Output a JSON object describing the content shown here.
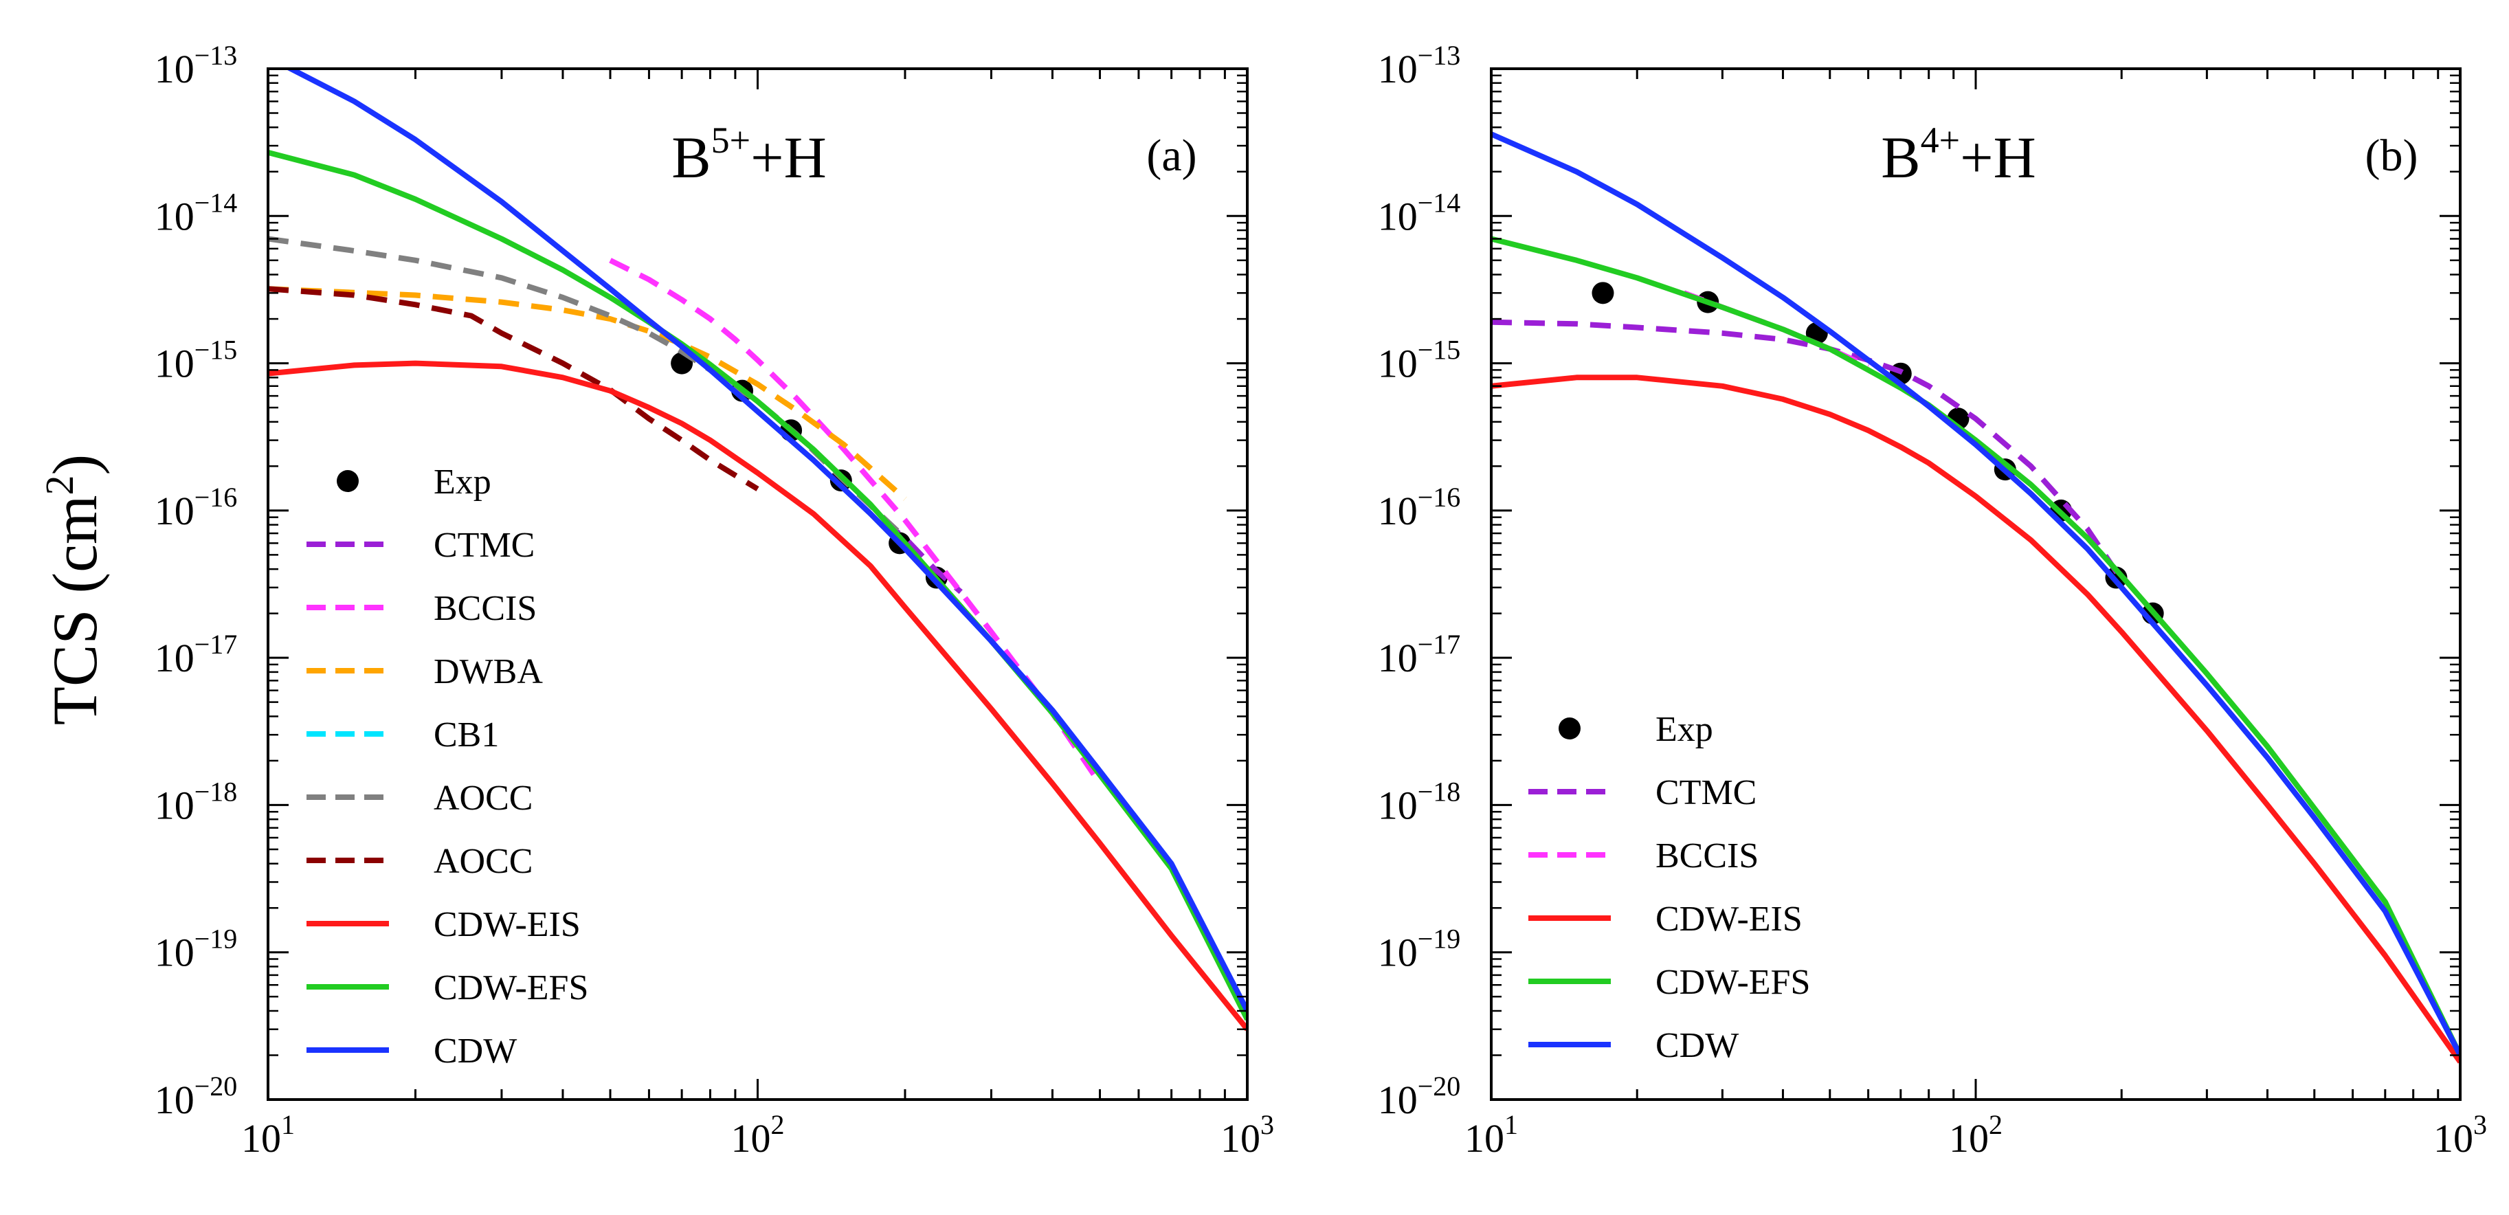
{
  "chart_data": {
    "shared": {
      "type": "line",
      "xscale": "log",
      "yscale": "log",
      "xlim": [
        10,
        1000
      ],
      "ylim": [
        1e-20,
        1e-13
      ],
      "ylabel": {
        "base": "TCS (cm",
        "sup": "2",
        "end": ")"
      },
      "xticks": [
        {
          "value": 10,
          "base": "10",
          "exp": "1"
        },
        {
          "value": 100,
          "base": "10",
          "exp": "2"
        },
        {
          "value": 1000,
          "base": "10",
          "exp": "3"
        }
      ],
      "yticks": [
        {
          "value": -13,
          "base": "10",
          "exp": "−13"
        },
        {
          "value": -14,
          "base": "10",
          "exp": "−14"
        },
        {
          "value": -15,
          "base": "10",
          "exp": "−15"
        },
        {
          "value": -16,
          "base": "10",
          "exp": "−16"
        },
        {
          "value": -17,
          "base": "10",
          "exp": "−17"
        },
        {
          "value": -18,
          "base": "10",
          "exp": "−18"
        },
        {
          "value": -19,
          "base": "10",
          "exp": "−19"
        },
        {
          "value": -20,
          "base": "10",
          "exp": "−20"
        }
      ]
    },
    "panels": [
      {
        "id": "a",
        "title": {
          "base": "B",
          "sup": "5+",
          "rest": "+H"
        },
        "tag": "(a)",
        "legend_position": "lower-left",
        "series": [
          {
            "name": "Exp",
            "kind": "scatter",
            "color": "#000000",
            "x": [
              70,
              93,
              117,
              148,
              195,
              232
            ],
            "y": [
              1e-15,
              6.5e-16,
              3.5e-16,
              1.6e-16,
              6e-17,
              3.5e-17
            ]
          },
          {
            "name": "CTMC",
            "kind": "dashed",
            "color": "#9b1fd6",
            "x": [
              180,
              200,
              230,
              260
            ],
            "y": [
              8.5e-17,
              6.5e-17,
              4e-17,
              2.8e-17
            ]
          },
          {
            "name": "BCCIS",
            "kind": "dashed",
            "color": "#ff33ff",
            "x": [
              50,
              60,
              70,
              80,
              90,
              100,
              120,
              150,
              200,
              250,
              300,
              400,
              500
            ],
            "y": [
              5e-15,
              3.7e-15,
              2.7e-15,
              2e-15,
              1.45e-15,
              1.05e-15,
              5.8e-16,
              2.6e-16,
              8.6e-17,
              3.3e-17,
              1.5e-17,
              4.2e-18,
              1.4e-18
            ]
          },
          {
            "name": "DWBA",
            "kind": "dashed",
            "color": "#ffa500",
            "x": [
              10,
              20,
              30,
              40,
              50,
              60,
              70,
              80,
              100,
              120,
              150,
              200
            ],
            "y": [
              3.2e-15,
              2.9e-15,
              2.6e-15,
              2.3e-15,
              2e-15,
              1.65e-15,
              1.35e-15,
              1.1e-15,
              7.2e-16,
              4.8e-16,
              2.8e-16,
              1.2e-16
            ]
          },
          {
            "name": "CB1",
            "kind": "dashed",
            "color": "#00e5ff",
            "x": [],
            "y": []
          },
          {
            "name": "AOCC",
            "kind": "dashed",
            "color": "#808080",
            "x": [
              10,
              15,
              20,
              30,
              40,
              50,
              60,
              70,
              80,
              100,
              120,
              150,
              200
            ],
            "y": [
              7e-15,
              5.8e-15,
              5e-15,
              3.8e-15,
              2.8e-15,
              2.1e-15,
              1.6e-15,
              1.2e-15,
              9e-16,
              5.5e-16,
              3.3e-16,
              1.6e-16,
              6.5e-17
            ]
          },
          {
            "name": "AOCC",
            "kind": "dashed",
            "color": "#8b0000",
            "x": [
              10,
              15,
              20,
              26,
              30,
              40,
              50,
              60,
              70,
              80,
              100
            ],
            "y": [
              3.2e-15,
              2.9e-15,
              2.5e-15,
              2.1e-15,
              1.6e-15,
              1e-15,
              6.6e-16,
              4.2e-16,
              3e-16,
              2.2e-16,
              1.4e-16
            ]
          },
          {
            "name": "CDW-EIS",
            "kind": "solid",
            "color": "#ff1a1a",
            "x": [
              10,
              15,
              20,
              30,
              40,
              50,
              60,
              70,
              80,
              100,
              130,
              170,
              200,
              300,
              400,
              500,
              700,
              1000
            ],
            "y": [
              8.5e-16,
              9.7e-16,
              1e-15,
              9.5e-16,
              8e-16,
              6.5e-16,
              5e-16,
              3.9e-16,
              3e-16,
              1.8e-16,
              9.5e-17,
              4.2e-17,
              2.2e-17,
              4.5e-18,
              1.4e-18,
              5.5e-19,
              1.3e-19,
              3e-20
            ]
          },
          {
            "name": "CDW-EFS",
            "kind": "solid",
            "color": "#22cc22",
            "x": [
              10,
              15,
              20,
              30,
              40,
              50,
              60,
              70,
              80,
              100,
              130,
              170,
              200,
              300,
              400,
              500,
              700,
              1000
            ],
            "y": [
              2.7e-14,
              1.9e-14,
              1.3e-14,
              7e-15,
              4.3e-15,
              2.8e-15,
              1.9e-15,
              1.35e-15,
              9.8e-16,
              5.5e-16,
              2.6e-16,
              1.1e-16,
              6e-17,
              1.3e-17,
              4.2e-18,
              1.6e-18,
              3.7e-19,
              3.5e-20
            ]
          },
          {
            "name": "CDW",
            "kind": "solid",
            "color": "#1a33ff",
            "x": [
              10,
              15,
              20,
              30,
              40,
              50,
              60,
              70,
              80,
              100,
              130,
              170,
              200,
              300,
              400,
              500,
              700,
              1000
            ],
            "y": [
              1.2e-13,
              6e-14,
              3.3e-14,
              1.25e-14,
              5.8e-15,
              3.2e-15,
              1.95e-15,
              1.3e-15,
              9e-16,
              4.7e-16,
              2.2e-16,
              9.5e-17,
              5.5e-17,
              1.3e-17,
              4.4e-18,
              1.7e-18,
              4e-19,
              4e-20
            ]
          }
        ]
      },
      {
        "id": "b",
        "title": {
          "base": "B",
          "sup": "4+",
          "rest": "+H"
        },
        "tag": "(b)",
        "legend_position": "lower-left",
        "series": [
          {
            "name": "Exp",
            "kind": "scatter",
            "color": "#000000",
            "x": [
              17,
              28,
              47,
              70,
              92,
              115,
              150,
              195,
              232
            ],
            "y": [
              3e-15,
              2.6e-15,
              1.6e-15,
              8.5e-16,
              4.2e-16,
              1.9e-16,
              1e-16,
              3.5e-17,
              2e-17
            ]
          },
          {
            "name": "CTMC",
            "kind": "dashed",
            "color": "#9b1fd6",
            "x": [
              10,
              15,
              20,
              30,
              40,
              50,
              60,
              70,
              80,
              100,
              130,
              170,
              200
            ],
            "y": [
              1.9e-15,
              1.85e-15,
              1.75e-15,
              1.6e-15,
              1.45e-15,
              1.25e-15,
              1.05e-15,
              8.8e-16,
              7e-16,
              4.2e-16,
              2e-16,
              7.5e-17,
              3.4e-17
            ]
          },
          {
            "name": "BCCIS",
            "kind": "dashed",
            "color": "#ff33ff",
            "x": [
              25,
              30,
              40,
              50,
              60
            ],
            "y": [
              3e-15,
              2.4e-15,
              1.7e-15,
              1.25e-15,
              9.5e-16
            ]
          },
          {
            "name": "CDW-EIS",
            "kind": "solid",
            "color": "#ff1a1a",
            "x": [
              10,
              15,
              20,
              30,
              40,
              50,
              60,
              70,
              80,
              100,
              130,
              170,
              200,
              300,
              400,
              500,
              700,
              1000
            ],
            "y": [
              7e-16,
              8e-16,
              8e-16,
              7e-16,
              5.7e-16,
              4.5e-16,
              3.5e-16,
              2.7e-16,
              2.1e-16,
              1.25e-16,
              6.3e-17,
              2.7e-17,
              1.5e-17,
              3.2e-18,
              1e-18,
              4e-19,
              9.5e-20,
              1.8e-20
            ]
          },
          {
            "name": "CDW-EFS",
            "kind": "solid",
            "color": "#22cc22",
            "x": [
              10,
              15,
              20,
              30,
              40,
              50,
              60,
              70,
              80,
              100,
              130,
              170,
              200,
              300,
              400,
              500,
              700,
              1000
            ],
            "y": [
              7e-15,
              5e-15,
              3.8e-15,
              2.4e-15,
              1.7e-15,
              1.25e-15,
              9e-16,
              6.8e-16,
              5.2e-16,
              3e-16,
              1.5e-16,
              6.5e-17,
              3.6e-17,
              7.8e-18,
              2.5e-18,
              9.5e-19,
              2.2e-19,
              2e-20
            ]
          },
          {
            "name": "CDW",
            "kind": "solid",
            "color": "#1a33ff",
            "x": [
              10,
              15,
              20,
              30,
              40,
              50,
              60,
              70,
              80,
              100,
              130,
              170,
              200,
              300,
              400,
              500,
              700,
              1000
            ],
            "y": [
              3.6e-14,
              2e-14,
              1.2e-14,
              5.2e-15,
              2.8e-15,
              1.65e-15,
              1.05e-15,
              7.2e-16,
              5.1e-16,
              2.8e-16,
              1.3e-16,
              5.5e-17,
              3e-17,
              6.5e-18,
              2.1e-18,
              8.2e-19,
              1.9e-19,
              2e-20
            ]
          }
        ]
      }
    ]
  }
}
